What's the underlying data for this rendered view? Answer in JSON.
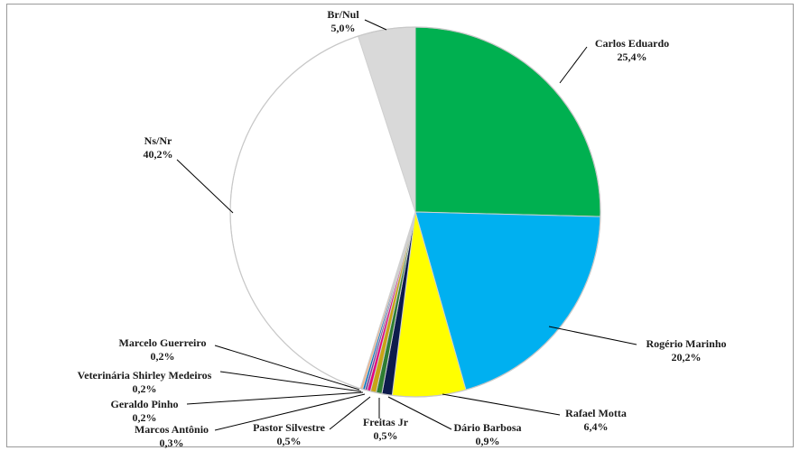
{
  "chart_data": {
    "type": "pie",
    "title": "",
    "slices": [
      {
        "label": "Carlos Eduardo",
        "value": 25.4,
        "value_text": "25,4%",
        "color": "#00b050"
      },
      {
        "label": "Rogério Marinho",
        "value": 20.2,
        "value_text": "20,2%",
        "color": "#00b0f0"
      },
      {
        "label": "Rafael Motta",
        "value": 6.4,
        "value_text": "6,4%",
        "color": "#ffff00"
      },
      {
        "label": "Dário Barbosa",
        "value": 0.9,
        "value_text": "0,9%",
        "color": "#0d1b4c"
      },
      {
        "label": "Freitas Jr",
        "value": 0.5,
        "value_text": "0,5%",
        "color": "#2e7d32"
      },
      {
        "label": "Pastor Silvestre",
        "value": 0.5,
        "value_text": "0,5%",
        "color": "#c8a415"
      },
      {
        "label": "Marcos Antônio",
        "value": 0.3,
        "value_text": "0,3%",
        "color": "#e4007c"
      },
      {
        "label": "Geraldo Pinho",
        "value": 0.2,
        "value_text": "0,2%",
        "color": "#7030a0"
      },
      {
        "label": "Veterinária Shirley Medeiros",
        "value": 0.2,
        "value_text": "0,2%",
        "color": "#0070c0"
      },
      {
        "label": "Marcelo Guerreiro",
        "value": 0.2,
        "value_text": "0,2%",
        "color": "#f4b183"
      },
      {
        "label": "Ns/Nr",
        "value": 40.2,
        "value_text": "40,2%",
        "color": "#ffffff"
      },
      {
        "label": "Br/Nul",
        "value": 5.0,
        "value_text": "5,0%",
        "color": "#d9d9d9"
      }
    ]
  }
}
